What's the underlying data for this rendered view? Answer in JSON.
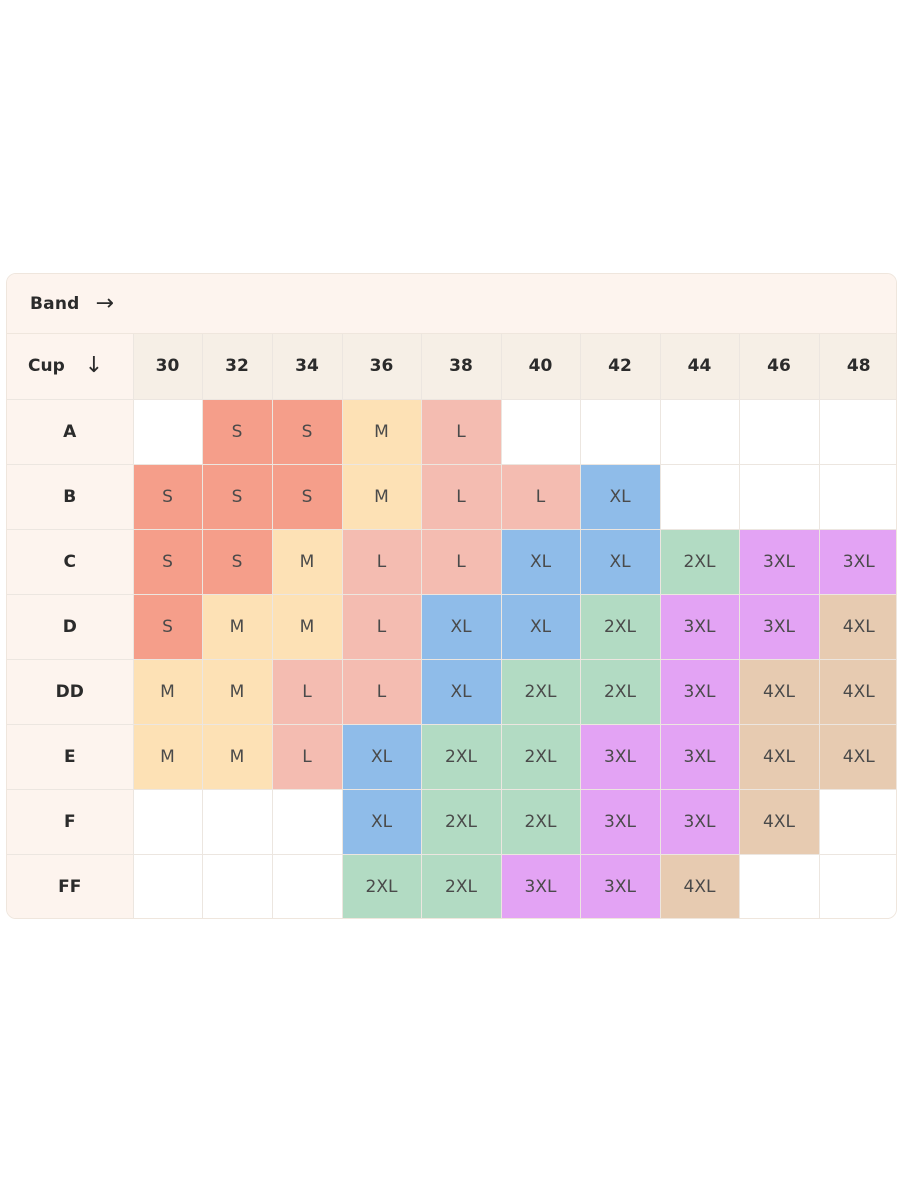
{
  "header": {
    "band_label": "Band",
    "band_arrow_icon": "arrow-right-icon",
    "cup_label": "Cup",
    "cup_arrow_icon": "arrow-down-icon"
  },
  "colors": {
    "S": "#f59e8a",
    "M": "#fde1b5",
    "L": "#f4bcb1",
    "XL": "#8fbce9",
    "2XL": "#b2dbc3",
    "3XL": "#e3a3f4",
    "4XL": "#e7cbb1",
    "empty": "#ffffff"
  },
  "bands": [
    "30",
    "32",
    "34",
    "36",
    "38",
    "40",
    "42",
    "44",
    "46",
    "48"
  ],
  "rows": [
    {
      "cup": "A",
      "sizes": [
        "",
        "S",
        "S",
        "M",
        "L",
        "",
        "",
        "",
        "",
        ""
      ]
    },
    {
      "cup": "B",
      "sizes": [
        "S",
        "S",
        "S",
        "M",
        "L",
        "L",
        "XL",
        "",
        "",
        ""
      ]
    },
    {
      "cup": "C",
      "sizes": [
        "S",
        "S",
        "M",
        "L",
        "L",
        "XL",
        "XL",
        "2XL",
        "3XL",
        "3XL"
      ]
    },
    {
      "cup": "D",
      "sizes": [
        "S",
        "M",
        "M",
        "L",
        "XL",
        "XL",
        "2XL",
        "3XL",
        "3XL",
        "4XL"
      ]
    },
    {
      "cup": "DD",
      "sizes": [
        "M",
        "M",
        "L",
        "L",
        "XL",
        "2XL",
        "2XL",
        "3XL",
        "4XL",
        "4XL"
      ]
    },
    {
      "cup": "E",
      "sizes": [
        "M",
        "M",
        "L",
        "XL",
        "2XL",
        "2XL",
        "3XL",
        "3XL",
        "4XL",
        "4XL"
      ]
    },
    {
      "cup": "F",
      "sizes": [
        "",
        "",
        "",
        "XL",
        "2XL",
        "2XL",
        "3XL",
        "3XL",
        "4XL",
        ""
      ]
    },
    {
      "cup": "FF",
      "sizes": [
        "",
        "",
        "",
        "2XL",
        "2XL",
        "3XL",
        "3XL",
        "4XL",
        "",
        ""
      ]
    }
  ]
}
